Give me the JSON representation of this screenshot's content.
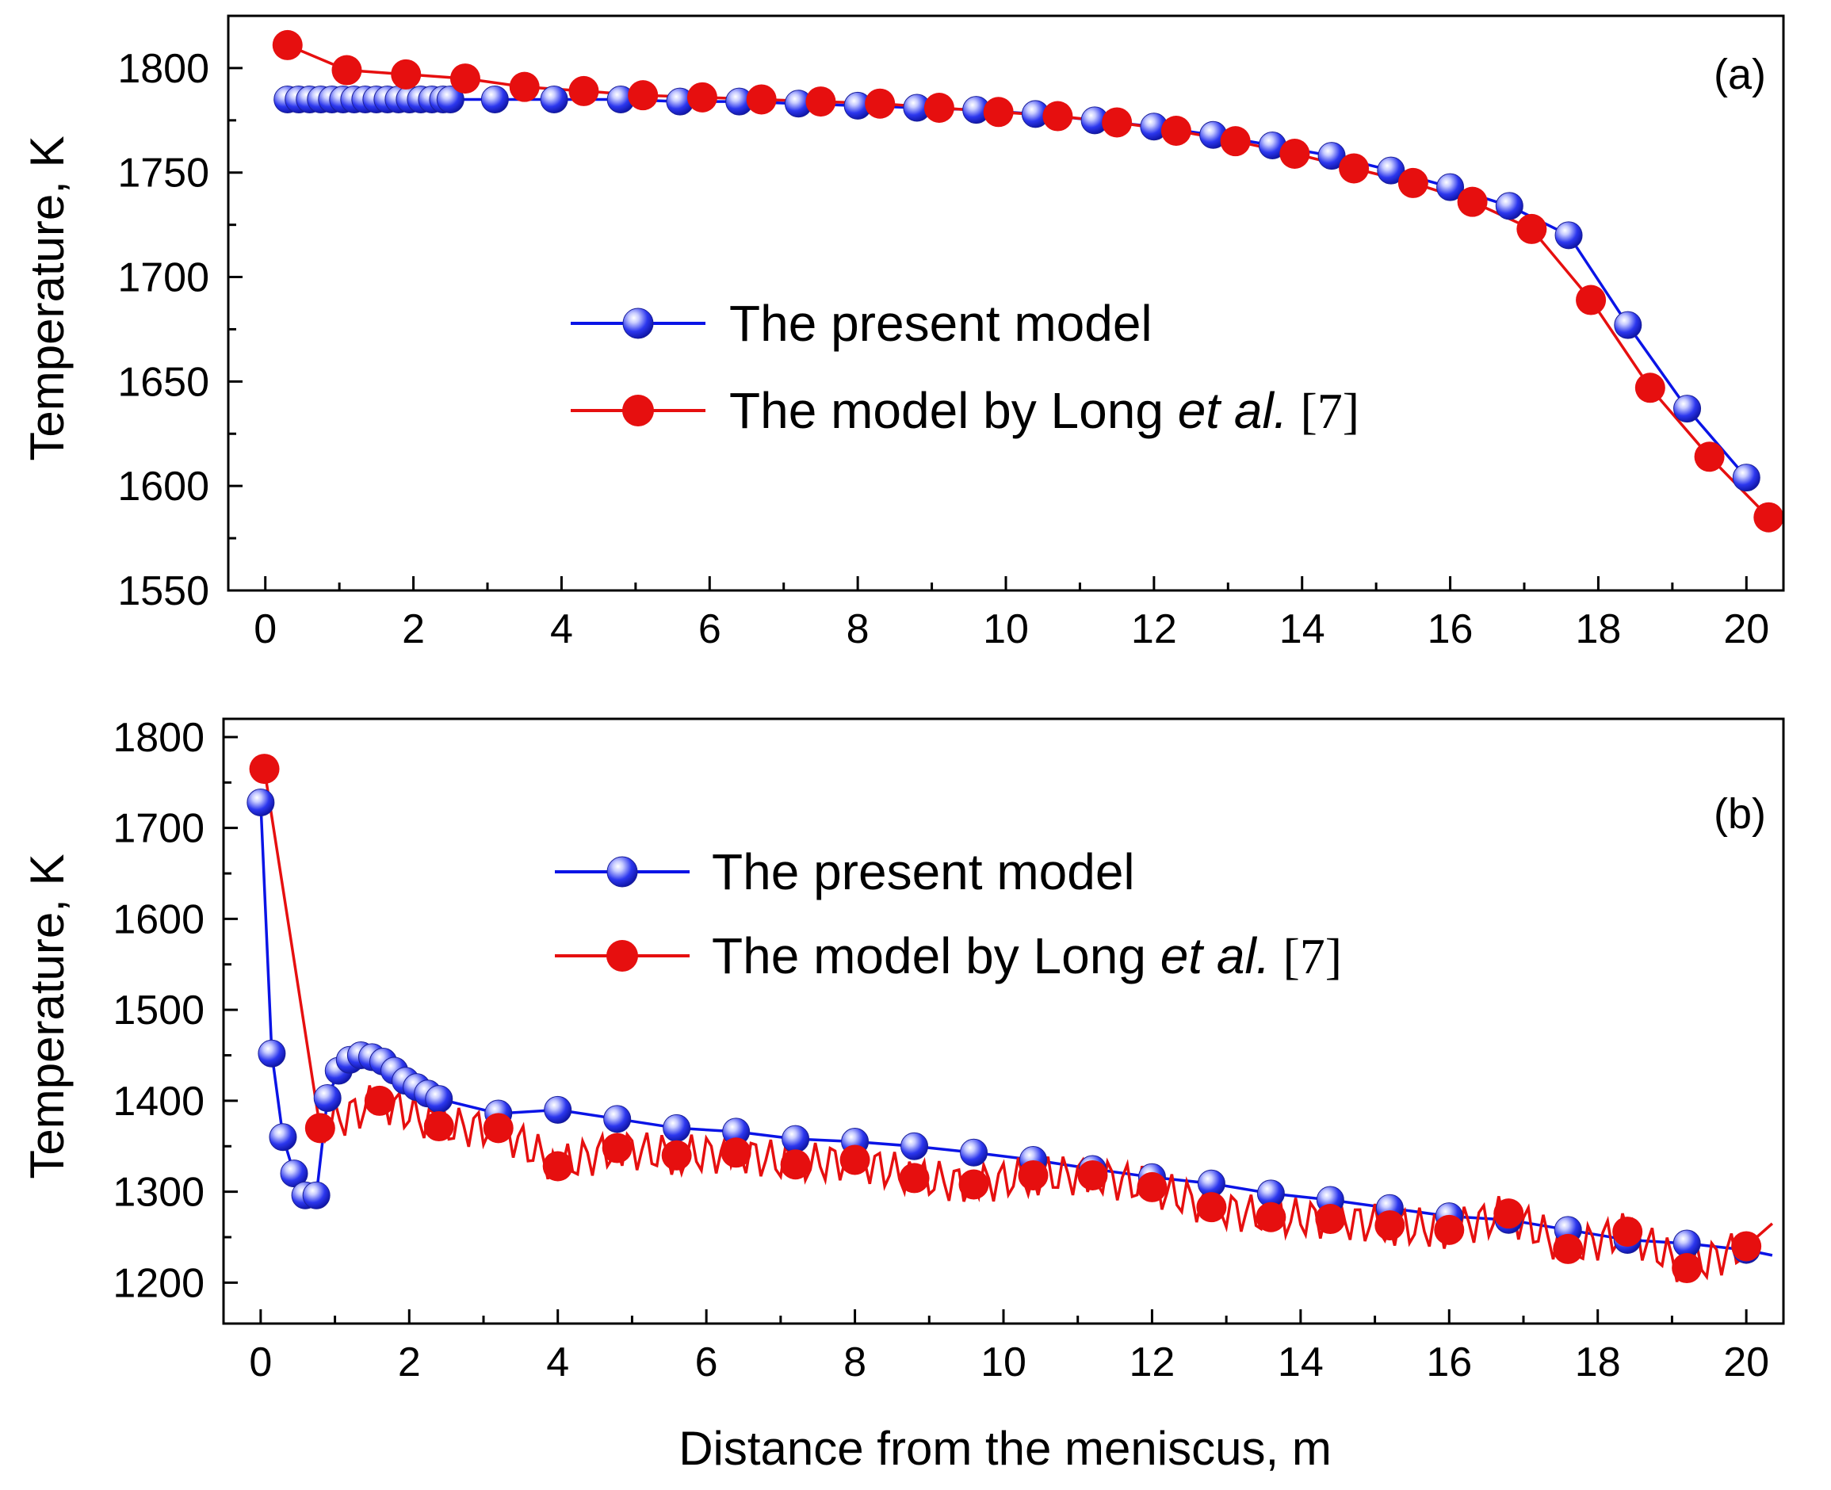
{
  "figure": {
    "xlabel": "Distance from the meniscus, m",
    "colors": {
      "present": "#0a14e6",
      "long": "#e60f0f",
      "axis": "#000000"
    }
  },
  "chart_data": [
    {
      "type": "line",
      "panel_label": "(a)",
      "xlabel": "Distance from the meniscus, m",
      "ylabel": "Temperature, K",
      "xlim": [
        -0.5,
        20.5
      ],
      "ylim": [
        1550,
        1825
      ],
      "x_ticks": [
        0,
        2,
        4,
        6,
        8,
        10,
        12,
        14,
        16,
        18,
        20
      ],
      "y_ticks": [
        1550,
        1600,
        1650,
        1700,
        1750,
        1800
      ],
      "legend": {
        "present": "The present model",
        "long_prefix": "The model by Long ",
        "long_italic": "et al.",
        "long_ref": " [7]"
      },
      "series": [
        {
          "name": "The present model",
          "marker": "sphere",
          "color": "#0a14e6",
          "x": [
            0.3,
            0.45,
            0.6,
            0.75,
            0.9,
            1.05,
            1.2,
            1.35,
            1.5,
            1.65,
            1.8,
            1.95,
            2.1,
            2.25,
            2.4,
            2.5,
            3.1,
            3.9,
            4.8,
            5.6,
            6.4,
            7.2,
            8.0,
            8.8,
            9.6,
            10.4,
            11.2,
            12.0,
            12.8,
            13.6,
            14.4,
            15.2,
            16.0,
            16.8,
            17.6,
            18.4,
            19.2,
            20.0
          ],
          "values": [
            1785,
            1785,
            1785,
            1785,
            1785,
            1785,
            1785,
            1785,
            1785,
            1785,
            1785,
            1785,
            1785,
            1785,
            1785,
            1785,
            1785,
            1785,
            1785,
            1784,
            1784,
            1783,
            1782,
            1781,
            1780,
            1778,
            1775,
            1772,
            1768,
            1763,
            1758,
            1751,
            1743,
            1734,
            1720,
            1677,
            1637,
            1604
          ]
        },
        {
          "name": "The model by Long et al. [7]",
          "marker": "circle",
          "color": "#e60f0f",
          "x": [
            0.3,
            1.1,
            1.9,
            2.7,
            3.5,
            4.3,
            5.1,
            5.9,
            6.7,
            7.5,
            8.3,
            9.1,
            9.9,
            10.7,
            11.5,
            12.3,
            13.1,
            13.9,
            14.7,
            15.5,
            16.3,
            17.1,
            17.9,
            18.7,
            19.5,
            20.3
          ],
          "values": [
            1811,
            1799,
            1797,
            1795,
            1791,
            1789,
            1787,
            1786,
            1785,
            1784,
            1783,
            1781,
            1779,
            1777,
            1774,
            1770,
            1765,
            1759,
            1752,
            1745,
            1736,
            1723,
            1689,
            1647,
            1614,
            1585
          ]
        }
      ]
    },
    {
      "type": "line",
      "panel_label": "(b)",
      "xlabel": "Distance from the meniscus, m",
      "ylabel": "Temperature, K",
      "xlim": [
        -0.5,
        20.5
      ],
      "ylim": [
        1155,
        1820
      ],
      "x_ticks": [
        0,
        2,
        4,
        6,
        8,
        10,
        12,
        14,
        16,
        18,
        20
      ],
      "y_ticks": [
        1200,
        1300,
        1400,
        1500,
        1600,
        1700,
        1800
      ],
      "legend": {
        "present": "The present model",
        "long_prefix": "The model by Long ",
        "long_italic": "et al.",
        "long_ref": " [7]"
      },
      "series": [
        {
          "name": "The present model",
          "marker": "sphere",
          "color": "#0a14e6",
          "x": [
            0.0,
            0.15,
            0.3,
            0.45,
            0.6,
            0.75,
            0.9,
            1.05,
            1.2,
            1.35,
            1.5,
            1.65,
            1.8,
            1.95,
            2.1,
            2.25,
            2.4,
            3.2,
            4.0,
            4.8,
            5.6,
            6.4,
            7.2,
            8.0,
            8.8,
            9.6,
            10.4,
            11.2,
            12.0,
            12.8,
            13.6,
            14.4,
            15.2,
            16.0,
            16.8,
            17.6,
            18.4,
            19.2,
            20.0
          ],
          "values": [
            1728,
            1452,
            1360,
            1320,
            1296,
            1296,
            1403,
            1433,
            1445,
            1450,
            1448,
            1443,
            1433,
            1422,
            1415,
            1408,
            1402,
            1386,
            1390,
            1380,
            1370,
            1366,
            1358,
            1355,
            1350,
            1343,
            1335,
            1325,
            1316,
            1309,
            1298,
            1291,
            1282,
            1273,
            1269,
            1258,
            1247,
            1243,
            1236
          ]
        },
        {
          "name": "The model by Long et al. [7]",
          "marker": "circle",
          "color": "#e60f0f",
          "x": [
            0.05,
            0.8,
            1.6,
            2.4,
            3.2,
            4.0,
            4.8,
            5.6,
            6.4,
            7.2,
            8.0,
            8.8,
            9.6,
            10.4,
            11.2,
            12.0,
            12.8,
            13.6,
            14.4,
            15.2,
            16.0,
            16.8,
            17.6,
            18.4,
            19.2,
            20.0
          ],
          "values": [
            1765,
            1370,
            1400,
            1372,
            1370,
            1328,
            1348,
            1340,
            1343,
            1330,
            1335,
            1315,
            1308,
            1318,
            1318,
            1305,
            1283,
            1272,
            1270,
            1263,
            1258,
            1276,
            1237,
            1256,
            1216,
            1240
          ]
        }
      ]
    }
  ]
}
